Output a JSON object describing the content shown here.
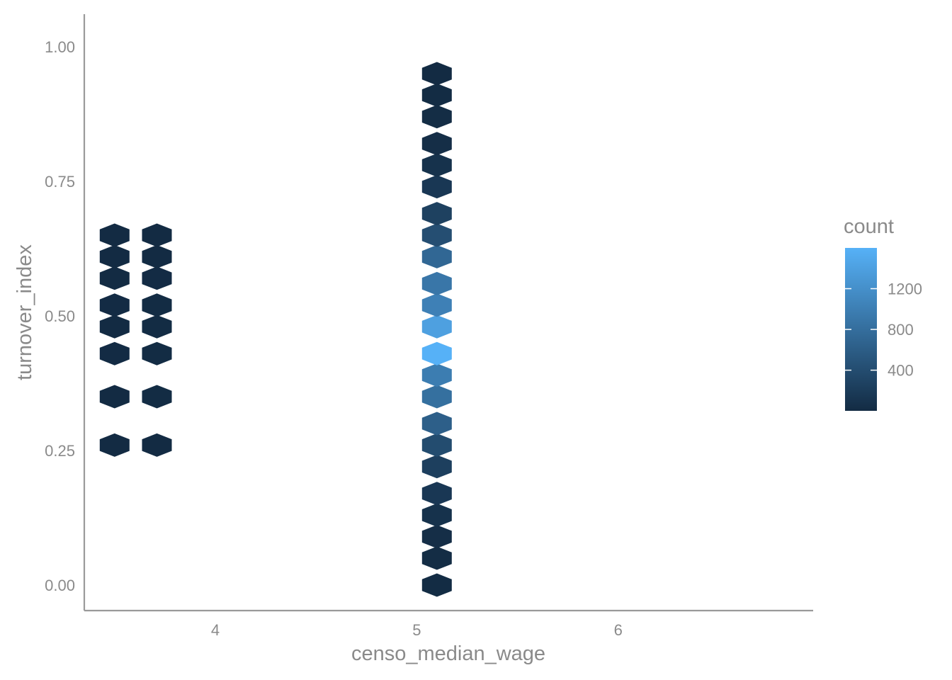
{
  "chart_data": {
    "type": "hexbin",
    "title": "",
    "xlabel": "censo_median_wage",
    "ylabel": "turnover_index",
    "xlim": [
      3.35,
      6.98
    ],
    "ylim": [
      -0.09,
      1.12
    ],
    "x_ticks": [
      4,
      5,
      6
    ],
    "x_tick_labels": [
      "4",
      "5",
      "6"
    ],
    "y_ticks": [
      0.0,
      0.25,
      0.5,
      0.75,
      1.0
    ],
    "y_tick_labels": [
      "0.00",
      "0.25",
      "0.50",
      "0.75",
      "1.00"
    ],
    "grid": false,
    "hex_grid": {
      "x0": 3.5,
      "dx": 0.2114,
      "y0": 0.0,
      "dy": 0.0433
    },
    "fill_scale": {
      "name": "count",
      "low_color": "#132b43",
      "high_color": "#56b1f7",
      "min": 1,
      "max": 1600,
      "breaks": [
        400,
        800,
        1200
      ],
      "break_labels": [
        "400",
        "800",
        "1200"
      ]
    },
    "legend_position": "right",
    "bins": [
      [
        3.5,
        0.0,
        0
      ],
      [
        3.5,
        0.26,
        3
      ],
      [
        3.5,
        0.35,
        4
      ],
      [
        3.5,
        0.43,
        6
      ],
      [
        3.5,
        0.48,
        5
      ],
      [
        3.5,
        0.52,
        6
      ],
      [
        3.5,
        0.57,
        3
      ],
      [
        3.5,
        0.61,
        2
      ],
      [
        3.5,
        0.65,
        2
      ],
      [
        3.71,
        0.0,
        0
      ],
      [
        3.71,
        0.26,
        5
      ],
      [
        3.71,
        0.35,
        7
      ],
      [
        3.71,
        0.43,
        10
      ],
      [
        3.71,
        0.48,
        8
      ],
      [
        3.71,
        0.52,
        9
      ],
      [
        3.71,
        0.57,
        6
      ],
      [
        3.71,
        0.61,
        5
      ],
      [
        3.71,
        0.65,
        4
      ],
      [
        5.1,
        0.0,
        8
      ],
      [
        5.1,
        0.05,
        20
      ],
      [
        5.1,
        0.09,
        40
      ],
      [
        5.1,
        0.13,
        80
      ],
      [
        5.1,
        0.17,
        150
      ],
      [
        5.1,
        0.22,
        240
      ],
      [
        5.1,
        0.26,
        390
      ],
      [
        5.1,
        0.3,
        620
      ],
      [
        5.1,
        0.35,
        820
      ],
      [
        5.1,
        0.39,
        980
      ],
      [
        5.1,
        0.43,
        1600
      ],
      [
        5.1,
        0.48,
        1400
      ],
      [
        5.1,
        0.52,
        1020
      ],
      [
        5.1,
        0.56,
        900
      ],
      [
        5.1,
        0.61,
        720
      ],
      [
        5.1,
        0.65,
        420
      ],
      [
        5.1,
        0.69,
        260
      ],
      [
        5.1,
        0.74,
        150
      ],
      [
        5.1,
        0.78,
        80
      ],
      [
        5.1,
        0.82,
        40
      ],
      [
        5.1,
        0.87,
        20
      ],
      [
        5.1,
        0.91,
        10
      ],
      [
        5.1,
        0.95,
        4
      ]
    ],
    "note_bins": "bins: [x, y, count]"
  }
}
